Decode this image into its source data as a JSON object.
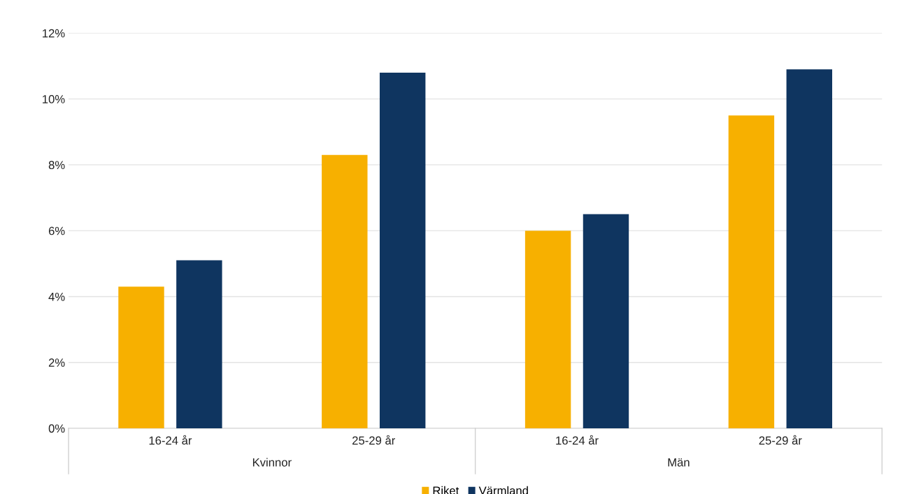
{
  "chart_data": {
    "type": "bar",
    "categories": [
      "16-24 år",
      "25-29 år",
      "16-24 år",
      "25-29 år"
    ],
    "series": [
      {
        "name": "Riket",
        "color": "#f7b000",
        "values": [
          4.3,
          8.3,
          6.0,
          9.5
        ]
      },
      {
        "name": "Värmland",
        "color": "#0f3560",
        "values": [
          5.1,
          10.8,
          6.5,
          10.9
        ]
      }
    ],
    "annotations": [
      "Kvinnor",
      "Män"
    ],
    "ylim": [
      0,
      12
    ],
    "yticks": [
      {
        "value": 0,
        "label": "0%"
      },
      {
        "value": 2,
        "label": "2%"
      },
      {
        "value": 4,
        "label": "4%"
      },
      {
        "value": 6,
        "label": "6%"
      },
      {
        "value": 8,
        "label": "8%"
      },
      {
        "value": 10,
        "label": "10%"
      },
      {
        "value": 12,
        "label": "12%"
      }
    ],
    "grid": "y",
    "legend": "bottom"
  }
}
